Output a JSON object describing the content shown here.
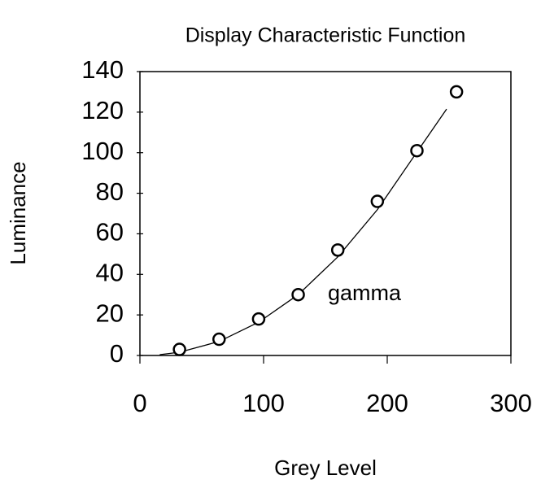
{
  "chart_data": {
    "type": "scatter",
    "title": "Display Characteristic Function",
    "x_label": "Grey Level",
    "y_label": "Luminance",
    "annotation": "gamma",
    "x": [
      32,
      64,
      96,
      128,
      160,
      192,
      224,
      256
    ],
    "values": [
      3,
      8,
      18,
      30,
      52,
      76,
      101,
      130
    ],
    "fit": {
      "x": [
        16,
        32,
        64,
        96,
        128,
        160,
        192,
        224,
        248
      ],
      "values": [
        0.4,
        1.6,
        6.9,
        16.4,
        30,
        48.6,
        71.9,
        100.3,
        121.5
      ]
    },
    "color": "#000000",
    "xlim": [
      0,
      300
    ],
    "xticks": [
      0,
      100,
      200,
      300
    ],
    "ylim": [
      0,
      140
    ],
    "yticks": [
      0,
      20,
      40,
      60,
      80,
      100,
      120,
      140
    ]
  }
}
